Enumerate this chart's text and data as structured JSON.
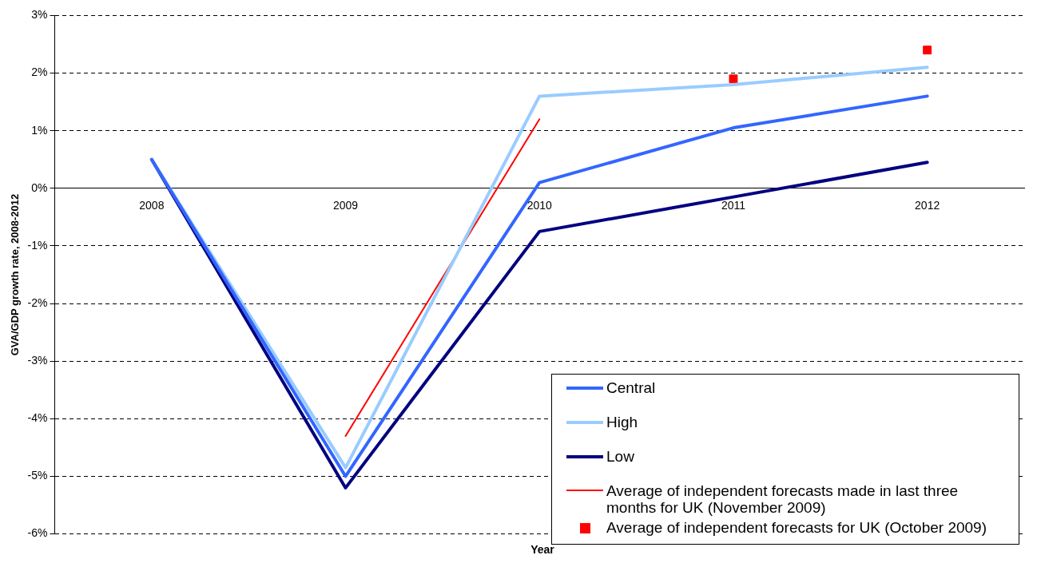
{
  "chart_data": {
    "type": "line",
    "xlabel": "Year",
    "ylabel": "GVA/GDP growth rate, 2008-2012",
    "categories": [
      "2008",
      "2009",
      "2010",
      "2011",
      "2012"
    ],
    "series": [
      {
        "name": "Central",
        "color": "#3366ff",
        "values": [
          0.5,
          -5.0,
          0.1,
          1.05,
          1.6
        ]
      },
      {
        "name": "High",
        "color": "#99ccff",
        "values": [
          0.5,
          -4.85,
          1.6,
          1.8,
          2.1
        ]
      },
      {
        "name": "Low",
        "color": "#000080",
        "values": [
          0.5,
          -5.2,
          -0.75,
          -0.15,
          0.45
        ]
      },
      {
        "name": "Average of independent forecasts made in last three months for UK (November 2009)",
        "color": "#ff0000",
        "values": [
          null,
          -4.3,
          1.2,
          null,
          null
        ]
      },
      {
        "name": "Average of independent forecasts for UK (October 2009)",
        "type": "scatter",
        "marker": "square",
        "color": "#ff0000",
        "values": [
          null,
          null,
          null,
          1.9,
          2.4
        ]
      }
    ],
    "ylim": [
      -6,
      3
    ],
    "yticks": [
      {
        "value": -6,
        "label": "-6%"
      },
      {
        "value": -5,
        "label": "-5%"
      },
      {
        "value": -4,
        "label": "-4%"
      },
      {
        "value": -3,
        "label": "-3%"
      },
      {
        "value": -2,
        "label": "-2%"
      },
      {
        "value": -1,
        "label": "-1%"
      },
      {
        "value": 0,
        "label": "0%"
      },
      {
        "value": 1,
        "label": "1%"
      },
      {
        "value": 2,
        "label": "2%"
      },
      {
        "value": 3,
        "label": "3%"
      }
    ],
    "grid": "y",
    "legend": "bottom right",
    "marker": "none"
  }
}
